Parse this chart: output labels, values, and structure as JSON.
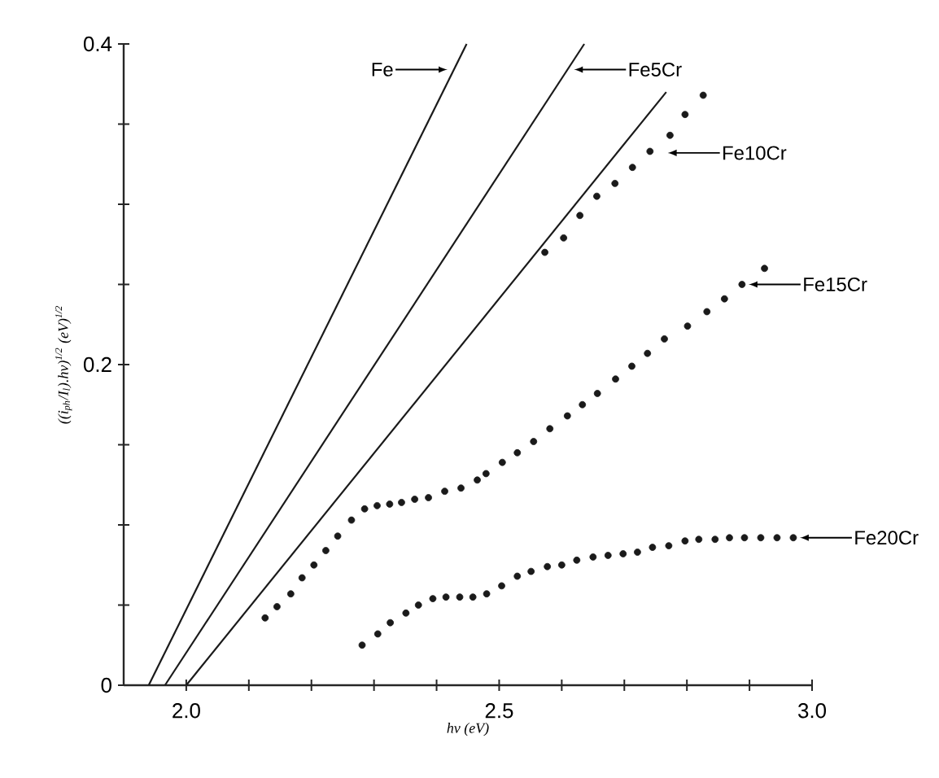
{
  "chart_data": {
    "type": "scatter",
    "xlabel": "hν (eV)",
    "ylabel": "((i$_{ph}$/I$_{l}$).hν)$^{1/2}$  (eV)$^{1/2}$",
    "xlim": [
      1.9,
      3.0
    ],
    "ylim": [
      0,
      0.4
    ],
    "xticks": [
      {
        "value": 2.0,
        "label": "2.0"
      },
      {
        "value": 2.1,
        "label": null
      },
      {
        "value": 2.2,
        "label": null
      },
      {
        "value": 2.3,
        "label": null
      },
      {
        "value": 2.4,
        "label": null
      },
      {
        "value": 2.5,
        "label": "2.5"
      },
      {
        "value": 2.6,
        "label": null
      },
      {
        "value": 2.7,
        "label": null
      },
      {
        "value": 2.8,
        "label": null
      },
      {
        "value": 2.9,
        "label": null
      },
      {
        "value": 3.0,
        "label": "3.0"
      }
    ],
    "yticks": [
      {
        "value": 0,
        "label": "0"
      },
      {
        "value": 0.05,
        "label": null
      },
      {
        "value": 0.1,
        "label": null
      },
      {
        "value": 0.15,
        "label": null
      },
      {
        "value": 0.2,
        "label": "0.2"
      },
      {
        "value": 0.25,
        "label": null
      },
      {
        "value": 0.3,
        "label": null
      },
      {
        "value": 0.35,
        "label": null
      },
      {
        "value": 0.4,
        "label": "0.4"
      }
    ],
    "grid": false,
    "series": [
      {
        "type": "line",
        "color": "#1a1a1a",
        "x": [
          1.94,
          2.448
        ],
        "values": [
          0,
          0.4
        ]
      },
      {
        "type": "line",
        "color": "#1a1a1a",
        "x": [
          1.966,
          2.636
        ],
        "values": [
          0,
          0.4
        ]
      },
      {
        "type": "line",
        "color": "#1a1a1a",
        "x": [
          2.0,
          2.767
        ],
        "values": [
          0,
          0.37
        ]
      },
      {
        "color": "#1a1a1a",
        "x": [
          2.573,
          2.603,
          2.629,
          2.656,
          2.685,
          2.713,
          2.741,
          2.773,
          2.797,
          2.826
        ],
        "values": [
          0.27,
          0.279,
          0.293,
          0.305,
          0.313,
          0.323,
          0.333,
          0.343,
          0.356,
          0.368
        ]
      },
      {
        "color": "#1a1a1a",
        "x": [
          2.126,
          2.145,
          2.167,
          2.185,
          2.204,
          2.223,
          2.242,
          2.264,
          2.285,
          2.305,
          2.325,
          2.344,
          2.365,
          2.387,
          2.413,
          2.439,
          2.465,
          2.479,
          2.505,
          2.529,
          2.555,
          2.581,
          2.609,
          2.633,
          2.657,
          2.686,
          2.712,
          2.737,
          2.764,
          2.801,
          2.832,
          2.86,
          2.888,
          2.924
        ],
        "values": [
          0.042,
          0.049,
          0.057,
          0.067,
          0.075,
          0.084,
          0.093,
          0.103,
          0.11,
          0.112,
          0.113,
          0.114,
          0.116,
          0.117,
          0.121,
          0.123,
          0.128,
          0.132,
          0.139,
          0.145,
          0.152,
          0.16,
          0.168,
          0.175,
          0.182,
          0.191,
          0.199,
          0.207,
          0.216,
          0.224,
          0.233,
          0.241,
          0.25,
          0.26
        ]
      },
      {
        "color": "#1a1a1a",
        "x": [
          2.281,
          2.306,
          2.326,
          2.351,
          2.371,
          2.394,
          2.415,
          2.437,
          2.458,
          2.48,
          2.504,
          2.529,
          2.551,
          2.577,
          2.6,
          2.624,
          2.65,
          2.674,
          2.698,
          2.721,
          2.745,
          2.771,
          2.797,
          2.819,
          2.845,
          2.868,
          2.892,
          2.918,
          2.944,
          2.97
        ],
        "values": [
          0.025,
          0.032,
          0.039,
          0.045,
          0.05,
          0.054,
          0.055,
          0.055,
          0.055,
          0.057,
          0.062,
          0.068,
          0.071,
          0.074,
          0.075,
          0.078,
          0.08,
          0.081,
          0.082,
          0.083,
          0.086,
          0.087,
          0.09,
          0.091,
          0.091,
          0.092,
          0.092,
          0.092,
          0.092,
          0.092
        ]
      }
    ],
    "annotations": [
      {
        "text": "Fe",
        "x": 2.428,
        "y": 0.384
      },
      {
        "text": "Fe5Cr",
        "x": 2.609,
        "y": 0.384
      },
      {
        "text": "Fe10Cr",
        "x": 2.759,
        "y": 0.332
      },
      {
        "text": "Fe15Cr",
        "x": 2.888,
        "y": 0.25
      },
      {
        "text": "Fe20Cr",
        "x": 2.97,
        "y": 0.092
      }
    ]
  }
}
